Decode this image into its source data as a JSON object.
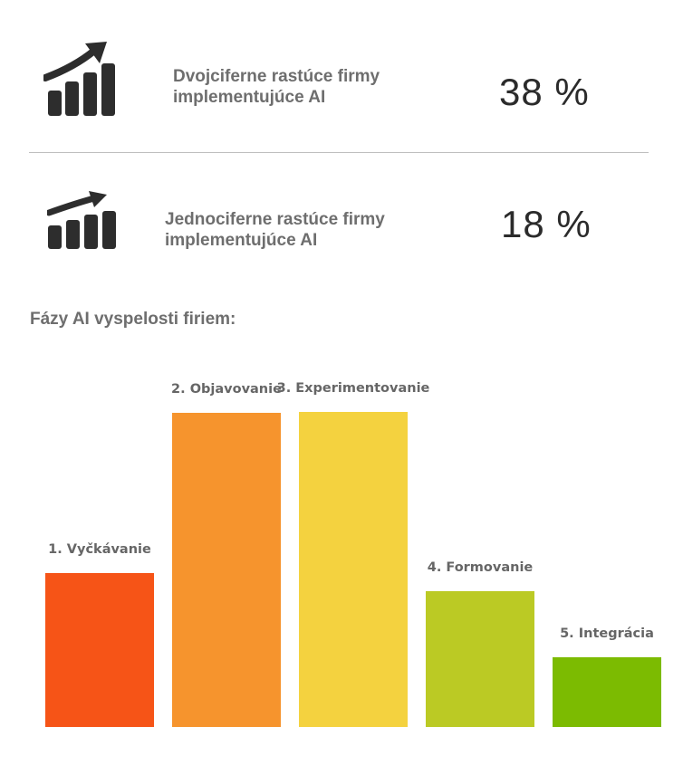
{
  "stats": [
    {
      "label_line1": "Dvojciferne rastúce firmy",
      "label_line2": "implementujúce AI",
      "value": "38 %",
      "icon": "growth-chart-arrow-icon"
    },
    {
      "label_line1": "Jednociferne rastúce firmy",
      "label_line2": "implementujúce AI",
      "value": "18 %",
      "icon": "growth-chart-arrow-icon"
    }
  ],
  "colors": {
    "icon": "#2d2d2d",
    "label": "#6e6e6e",
    "value": "#2b2b2b",
    "divider": "#bfbfbf"
  },
  "chart_data": {
    "type": "bar",
    "title": "Fázy AI vyspelosti firiem:",
    "categories": [
      "1. Vyčkávanie",
      "2. Objavovanie",
      "3. Experimentovanie",
      "4. Formovanie",
      "5. Integrácia"
    ],
    "values": [
      170,
      347,
      348,
      150,
      77
    ],
    "colors": [
      "#f65417",
      "#f6942d",
      "#f4d23f",
      "#bbca24",
      "#7cbb01"
    ],
    "xlabel": "",
    "ylabel": "",
    "ylim": [
      0,
      348
    ],
    "grid": false,
    "value_axis_visible": false
  }
}
